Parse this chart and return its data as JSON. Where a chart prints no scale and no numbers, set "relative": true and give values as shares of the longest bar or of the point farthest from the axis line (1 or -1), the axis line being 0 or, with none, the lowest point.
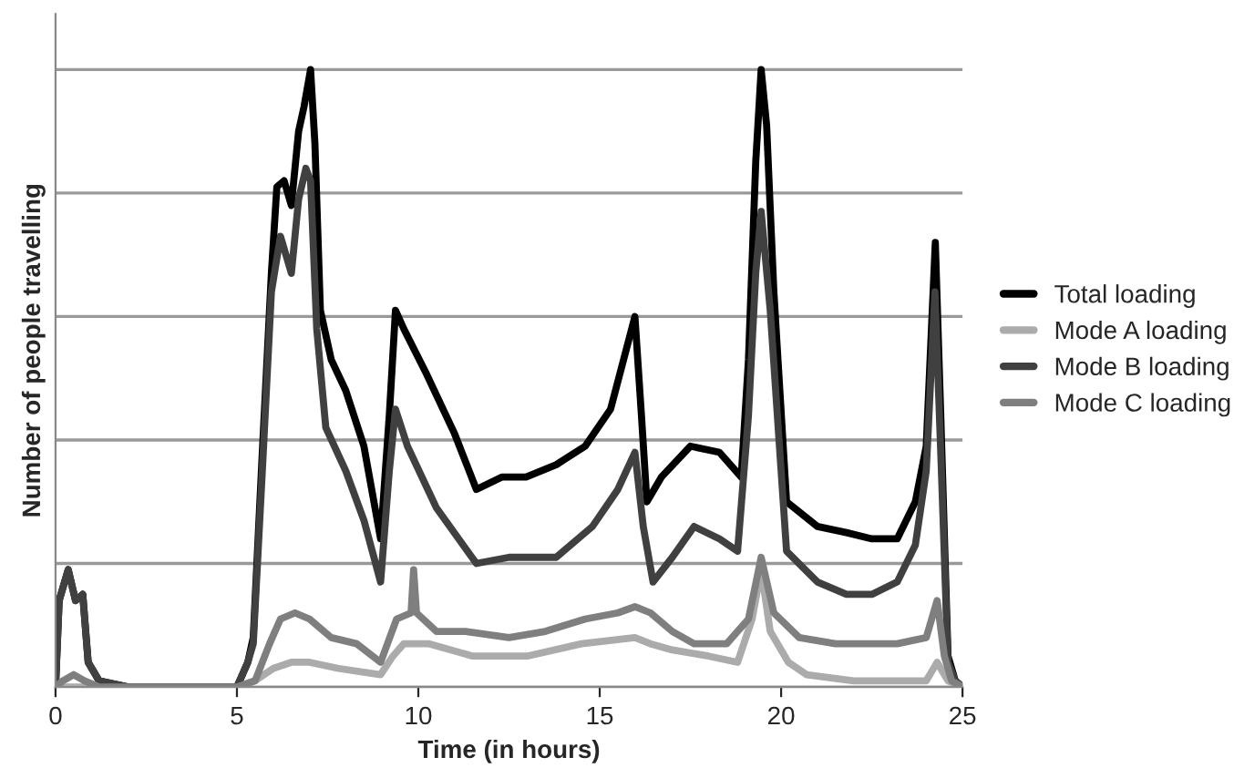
{
  "chart_data": {
    "type": "line",
    "xlabel": "Time (in hours)",
    "ylabel": "Number of people travelling",
    "relative": true,
    "xlim": [
      0,
      25
    ],
    "xticks": [
      0,
      5,
      10,
      15,
      20,
      25
    ],
    "grid": "y",
    "legend": "right",
    "tick_labels": "x",
    "marker": "none",
    "line_style": "solid",
    "series": [
      {
        "name": "Total loading",
        "color": "#000000",
        "x": [
          0,
          0.1,
          0.35,
          0.55,
          0.75,
          0.9,
          1.2,
          2.0,
          5.0,
          5.3,
          5.45,
          5.7,
          5.95,
          6.1,
          6.3,
          6.5,
          6.7,
          6.85,
          7.03,
          7.15,
          7.3,
          7.6,
          8.0,
          8.5,
          8.96,
          9.2,
          9.37,
          9.6,
          10.2,
          11,
          11.6,
          12.3,
          12.97,
          13.8,
          14.6,
          15.3,
          15.97,
          16.15,
          16.3,
          16.7,
          17.5,
          18.3,
          18.9,
          19.1,
          19.3,
          19.45,
          19.6,
          19.8,
          20.15,
          21,
          21.8,
          22.5,
          23.2,
          23.7,
          24.0,
          24.25,
          24.4,
          24.6,
          24.8,
          25
        ],
        "values": [
          0,
          0.14,
          0.19,
          0.14,
          0.15,
          0.04,
          0.01,
          0,
          0,
          0.04,
          0.08,
          0.38,
          0.67,
          0.81,
          0.82,
          0.78,
          0.9,
          0.94,
          1,
          0.88,
          0.61,
          0.53,
          0.48,
          0.39,
          0.24,
          0.44,
          0.61,
          0.58,
          0.51,
          0.41,
          0.32,
          0.34,
          0.34,
          0.36,
          0.39,
          0.45,
          0.6,
          0.44,
          0.3,
          0.34,
          0.39,
          0.38,
          0.34,
          0.53,
          0.85,
          1,
          0.91,
          0.64,
          0.3,
          0.26,
          0.25,
          0.24,
          0.24,
          0.3,
          0.39,
          0.72,
          0.44,
          0.05,
          0.01,
          0
        ]
      },
      {
        "name": "Mode A loading",
        "color": "#ababab",
        "x": [
          0,
          5.0,
          5.5,
          6.0,
          6.5,
          7.0,
          7.8,
          8.96,
          9.3,
          9.6,
          10.3,
          11.5,
          13.0,
          14.5,
          15.97,
          16.4,
          17.0,
          18.0,
          18.8,
          19.2,
          19.45,
          19.7,
          20.2,
          20.7,
          22,
          23.2,
          24.0,
          24.3,
          24.6,
          25
        ],
        "values": [
          0,
          0,
          0.01,
          0.03,
          0.04,
          0.04,
          0.03,
          0.02,
          0.05,
          0.07,
          0.07,
          0.05,
          0.05,
          0.07,
          0.08,
          0.07,
          0.06,
          0.05,
          0.04,
          0.11,
          0.19,
          0.09,
          0.04,
          0.02,
          0.01,
          0.01,
          0.01,
          0.04,
          0.01,
          0
        ]
      },
      {
        "name": "Mode B loading",
        "color": "#404040",
        "x": [
          0,
          0.1,
          0.35,
          0.55,
          0.75,
          0.9,
          1.2,
          2.0,
          5.0,
          5.3,
          5.45,
          5.7,
          5.95,
          6.2,
          6.5,
          6.7,
          6.9,
          7.03,
          7.2,
          7.45,
          8.0,
          8.5,
          8.96,
          9.2,
          9.37,
          9.7,
          10.5,
          11.6,
          12.5,
          13.8,
          14.8,
          15.5,
          15.97,
          16.2,
          16.47,
          17,
          17.6,
          18.3,
          18.8,
          19.1,
          19.3,
          19.45,
          19.7,
          20.15,
          21,
          21.8,
          22.5,
          23.2,
          23.7,
          24.0,
          24.24,
          24.4,
          24.6,
          24.8,
          25
        ],
        "values": [
          0,
          0.14,
          0.19,
          0.14,
          0.15,
          0.04,
          0.01,
          0,
          0,
          0.04,
          0.07,
          0.35,
          0.64,
          0.73,
          0.67,
          0.79,
          0.84,
          0.82,
          0.58,
          0.42,
          0.35,
          0.27,
          0.17,
          0.35,
          0.45,
          0.39,
          0.29,
          0.2,
          0.21,
          0.21,
          0.26,
          0.32,
          0.38,
          0.26,
          0.17,
          0.21,
          0.26,
          0.24,
          0.22,
          0.44,
          0.67,
          0.77,
          0.61,
          0.22,
          0.17,
          0.15,
          0.15,
          0.17,
          0.23,
          0.35,
          0.64,
          0.38,
          0.04,
          0.01,
          0
        ]
      },
      {
        "name": "Mode C loading",
        "color": "#7f7f7f",
        "x": [
          0,
          0.2,
          0.5,
          0.8,
          1.2,
          5.0,
          5.5,
          5.9,
          6.2,
          6.6,
          7.0,
          7.6,
          8.3,
          8.96,
          9.4,
          9.8,
          9.87,
          9.95,
          10.5,
          11.3,
          12.5,
          13.5,
          14.6,
          15.5,
          15.97,
          16.4,
          17,
          17.6,
          18.5,
          19.1,
          19.45,
          19.8,
          20.5,
          21.5,
          22.5,
          23.2,
          24.0,
          24.3,
          24.5,
          24.7,
          25
        ],
        "values": [
          0,
          0.01,
          0.02,
          0.01,
          0,
          0,
          0.01,
          0.07,
          0.11,
          0.12,
          0.11,
          0.08,
          0.07,
          0.04,
          0.11,
          0.12,
          0.19,
          0.12,
          0.09,
          0.09,
          0.08,
          0.09,
          0.11,
          0.12,
          0.13,
          0.12,
          0.09,
          0.07,
          0.07,
          0.11,
          0.21,
          0.12,
          0.08,
          0.07,
          0.07,
          0.07,
          0.08,
          0.14,
          0.05,
          0.01,
          0
        ]
      }
    ]
  }
}
